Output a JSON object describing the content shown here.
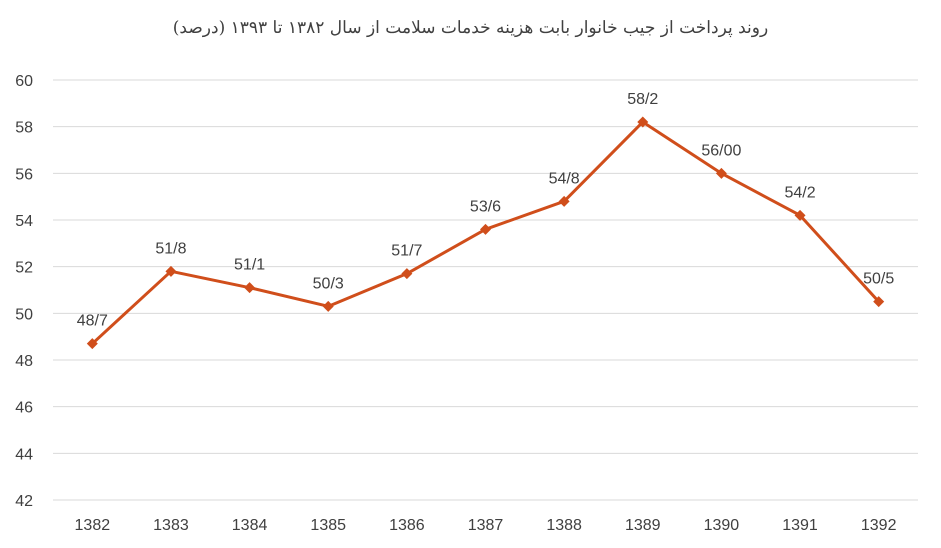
{
  "chart_data": {
    "type": "line",
    "title": "روند پرداخت از جیب خانوار بابت هزینه خدمات سلامت از سال ۱۳۸۲ تا ۱۳۹۳ (درصد)",
    "xlabel": "",
    "ylabel": "",
    "categories": [
      "1382",
      "1383",
      "1384",
      "1385",
      "1386",
      "1387",
      "1388",
      "1389",
      "1390",
      "1391",
      "1392"
    ],
    "series": [
      {
        "values": [
          48.7,
          51.8,
          51.1,
          50.3,
          51.7,
          53.6,
          54.8,
          58.2,
          56.0,
          54.2,
          50.5
        ],
        "data_labels": [
          "48/7",
          "51/8",
          "51/1",
          "50/3",
          "51/7",
          "53/6",
          "54/8",
          "58/2",
          "56/00",
          "54/2",
          "50/5"
        ],
        "color": "#D04E1B"
      }
    ],
    "ylim": [
      42,
      60
    ],
    "yticks": [
      42,
      44,
      46,
      48,
      50,
      52,
      54,
      56,
      58,
      60
    ],
    "ytick_labels": [
      "42",
      "44",
      "46",
      "48",
      "50",
      "52",
      "54",
      "56",
      "58",
      "60"
    ],
    "grid": true,
    "legend": "none",
    "marker": "diamond",
    "colors": {
      "gridline": "#D9D9D9",
      "text": "#404040",
      "axis": "#BFBFBF"
    }
  }
}
